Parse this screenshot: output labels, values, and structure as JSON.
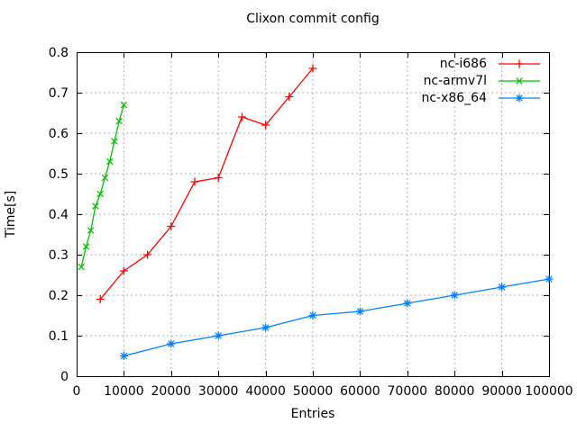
{
  "chart_data": {
    "type": "line",
    "title": "Clixon commit config",
    "xlabel": "Entries",
    "ylabel": "Time[s]",
    "xlim": [
      0,
      100000
    ],
    "ylim": [
      0,
      0.8
    ],
    "grid": true,
    "legend_position": "top-right-inside",
    "background_color": "#ffffff",
    "grid_color": "#b0b0b0",
    "axis_color": "#000000",
    "xtick_values": [
      0,
      10000,
      20000,
      30000,
      40000,
      50000,
      60000,
      70000,
      80000,
      90000,
      100000
    ],
    "xtick_labels": [
      "0",
      "10000",
      "20000",
      "30000",
      "40000",
      "50000",
      "60000",
      "70000",
      "80000",
      "90000",
      "100000"
    ],
    "ytick_values": [
      0,
      0.1,
      0.2,
      0.3,
      0.4,
      0.5,
      0.6,
      0.7,
      0.8
    ],
    "ytick_labels": [
      "0",
      "0.1",
      "0.2",
      "0.3",
      "0.4",
      "0.5",
      "0.6",
      "0.7",
      "0.8"
    ],
    "series": [
      {
        "name": "nc-i686",
        "color": "#ff0000",
        "marker": "plus",
        "x": [
          5000,
          10000,
          15000,
          20000,
          25000,
          30000,
          35000,
          40000,
          45000,
          50000
        ],
        "y": [
          0.19,
          0.26,
          0.3,
          0.37,
          0.48,
          0.49,
          0.64,
          0.62,
          0.69,
          0.76
        ]
      },
      {
        "name": "nc-armv7l",
        "color": "#00c000",
        "marker": "cross",
        "x": [
          1000,
          2000,
          3000,
          4000,
          5000,
          6000,
          7000,
          8000,
          9000,
          10000
        ],
        "y": [
          0.27,
          0.32,
          0.36,
          0.42,
          0.45,
          0.49,
          0.53,
          0.58,
          0.63,
          0.67
        ]
      },
      {
        "name": "nc-x86_64",
        "color": "#0080ff",
        "marker": "asterisk",
        "x": [
          10000,
          20000,
          30000,
          40000,
          50000,
          60000,
          70000,
          80000,
          90000,
          100000
        ],
        "y": [
          0.05,
          0.08,
          0.1,
          0.12,
          0.15,
          0.16,
          0.18,
          0.2,
          0.22,
          0.24
        ]
      }
    ]
  }
}
